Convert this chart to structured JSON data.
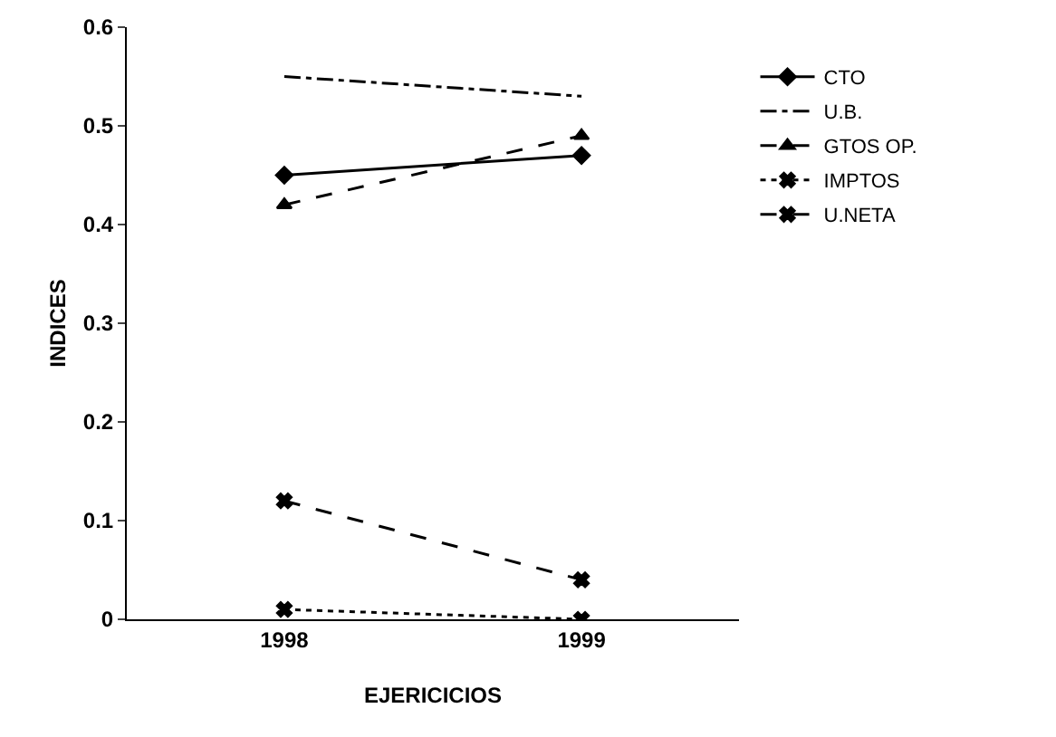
{
  "chart_data": {
    "type": "line",
    "xlabel": "EJERICICIOS",
    "ylabel": "INDICES",
    "categories": [
      "1998",
      "1999"
    ],
    "series": [
      {
        "name": "CTO",
        "color": "#000000",
        "values": [
          0.45,
          0.47
        ],
        "marker": "diamond",
        "line_style": "solid"
      },
      {
        "name": "U.B.",
        "color": "#000000",
        "values": [
          0.55,
          0.53
        ],
        "marker": "none",
        "line_style": "dashdot"
      },
      {
        "name": "GTOS OP.",
        "color": "#000000",
        "values": [
          0.42,
          0.49
        ],
        "marker": "triangle",
        "line_style": "dashed"
      },
      {
        "name": "IMPTOS",
        "color": "#000000",
        "values": [
          0.01,
          0.0
        ],
        "marker": "cross",
        "line_style": "dotted"
      },
      {
        "name": "U.NETA",
        "color": "#000000",
        "values": [
          0.12,
          0.04
        ],
        "marker": "cross",
        "line_style": "dashed"
      }
    ],
    "ylim": [
      0,
      0.6
    ],
    "yticks": [
      0,
      0.1,
      0.2,
      0.3,
      0.4,
      0.5,
      0.6
    ],
    "grid": false,
    "legend": "right"
  }
}
